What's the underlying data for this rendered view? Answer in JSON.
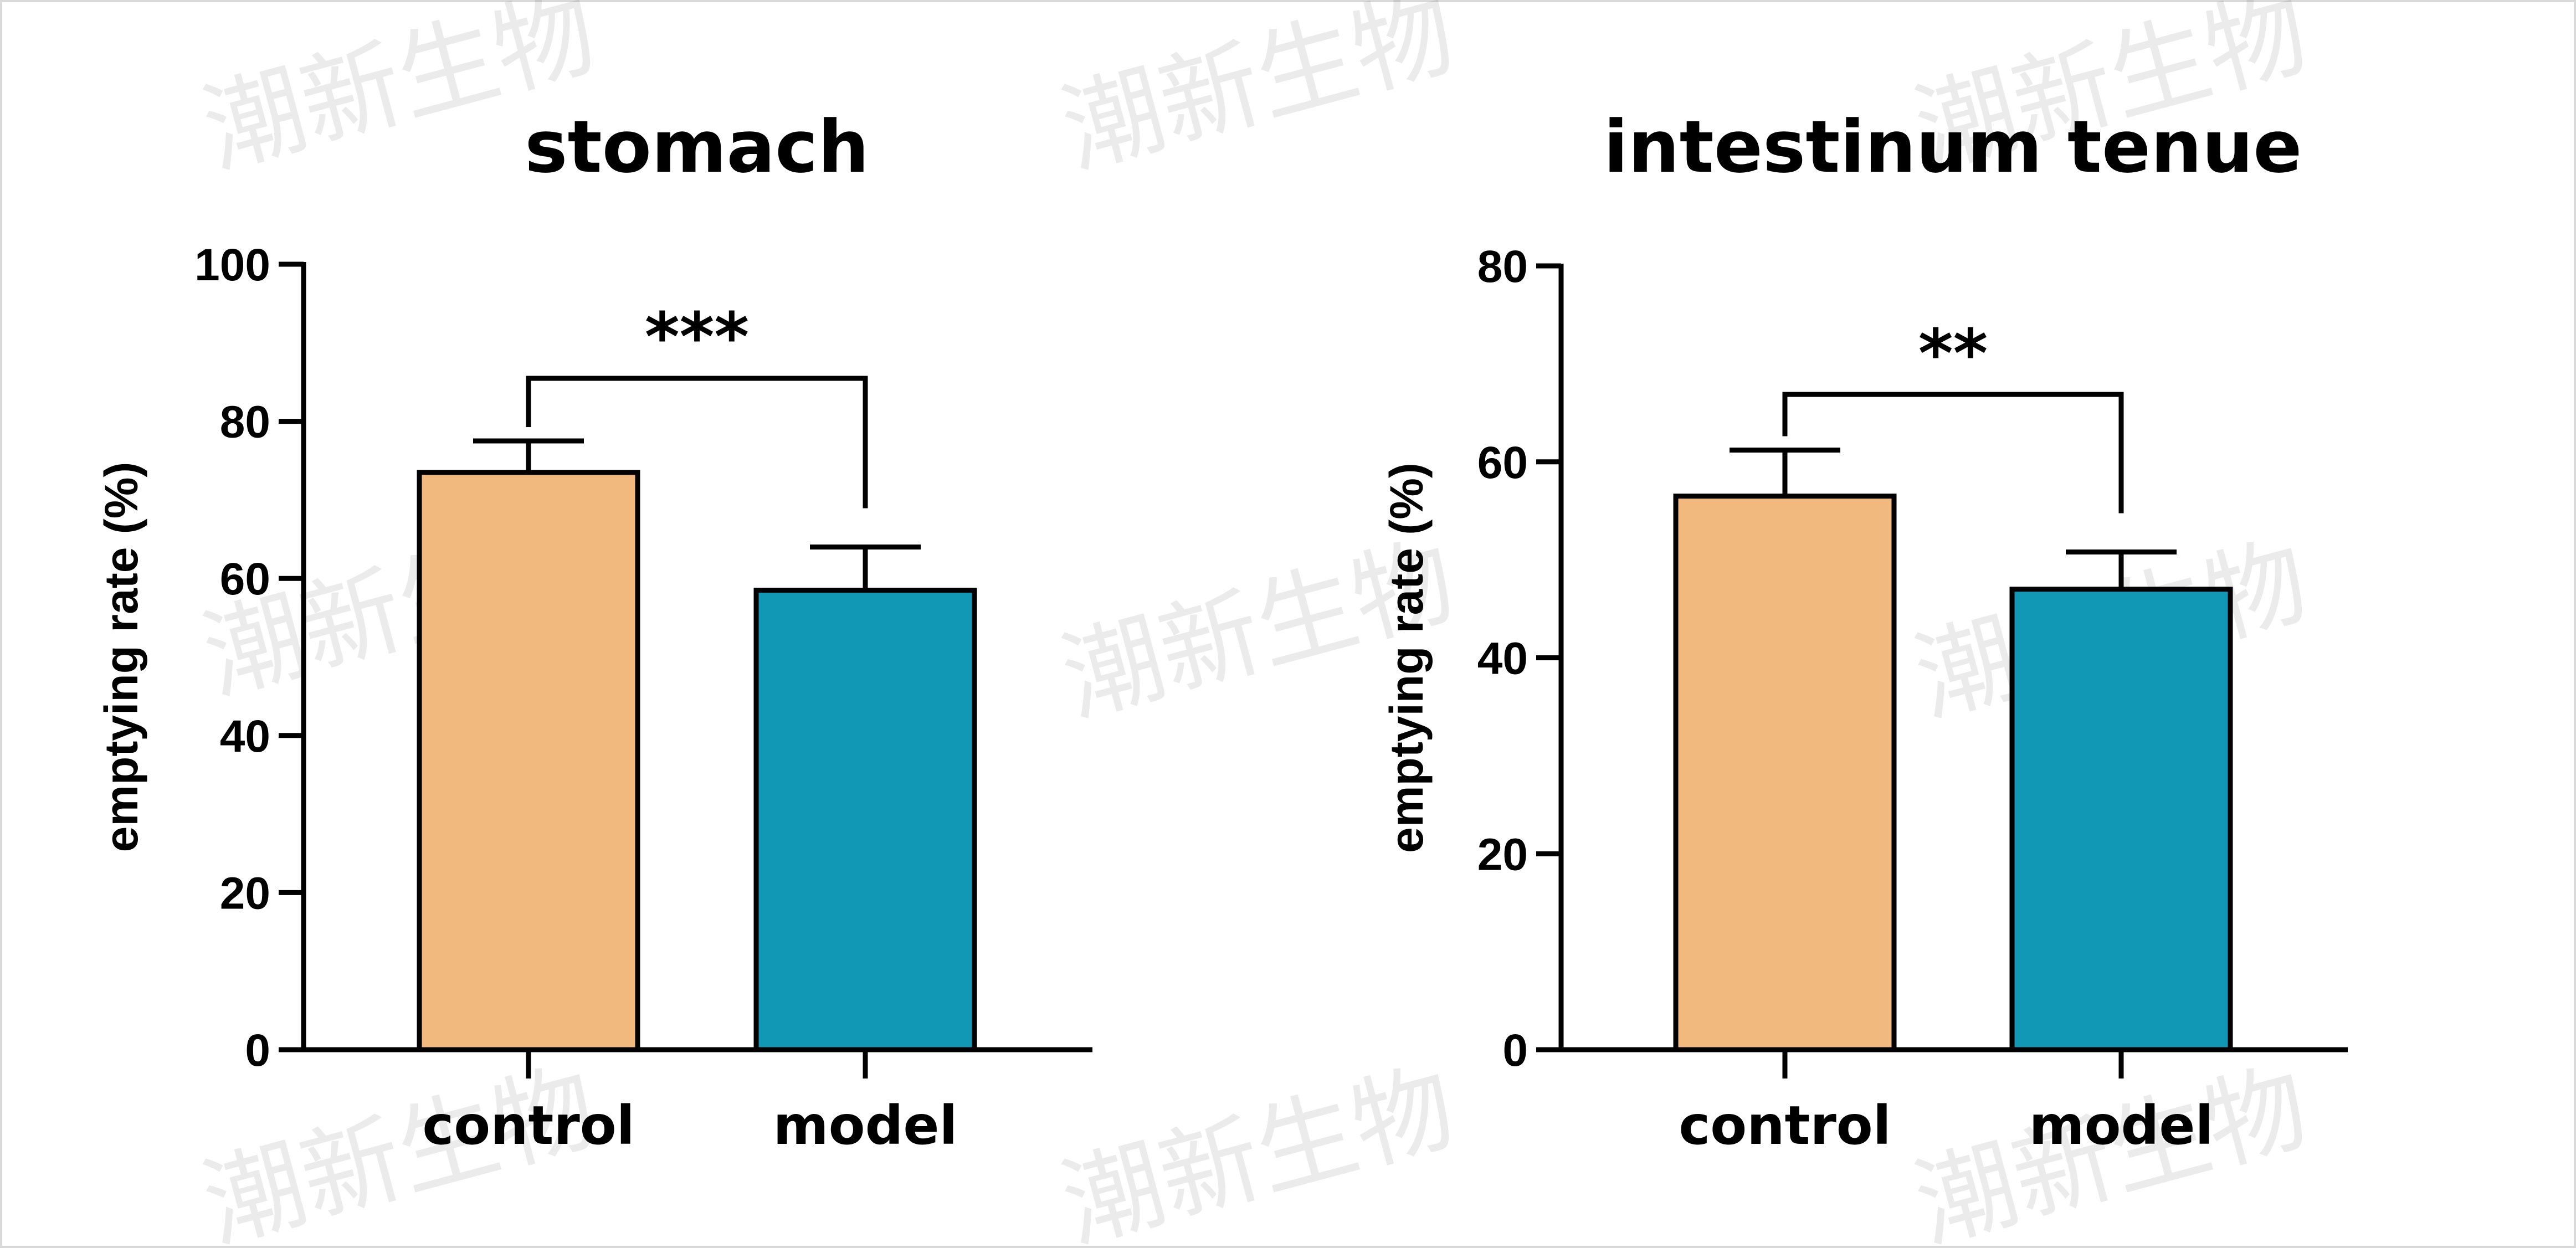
{
  "watermark": "潮新生物",
  "chart_data": [
    {
      "type": "bar",
      "title": "stomach",
      "ylabel": "emptying rate (%)",
      "xlabel": "",
      "categories": [
        "control",
        "model"
      ],
      "values": [
        73.5,
        58.5
      ],
      "errors": [
        4,
        5.5
      ],
      "colors": [
        "#F2B97E",
        "#1198B4"
      ],
      "ylim": [
        0,
        100
      ],
      "yticks": [
        "0",
        "20",
        "40",
        "60",
        "80",
        "100"
      ],
      "significance": "***",
      "grid": false,
      "legend": "none"
    },
    {
      "type": "bar",
      "title": "intestinum tenue",
      "ylabel": "emptying rate (%)",
      "xlabel": "",
      "categories": [
        "control",
        "model"
      ],
      "values": [
        56.5,
        47
      ],
      "errors": [
        4.7,
        3.8
      ],
      "colors": [
        "#F2B97E",
        "#1198B4"
      ],
      "ylim": [
        0,
        80
      ],
      "yticks": [
        "0",
        "20",
        "40",
        "60",
        "80"
      ],
      "significance": "**",
      "grid": false,
      "legend": "none"
    }
  ]
}
